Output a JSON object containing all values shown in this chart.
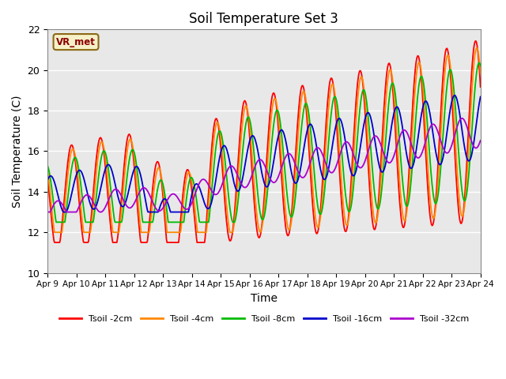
{
  "title": "Soil Temperature Set 3",
  "xlabel": "Time",
  "ylabel": "Soil Temperature (C)",
  "ylim": [
    10,
    22
  ],
  "xlim_days": [
    0,
    15
  ],
  "bg_color": "#e8e8e8",
  "label_box_text": "VR_met",
  "label_box_fg": "#8b0000",
  "label_box_bg": "#f5f0c8",
  "label_box_border": "#8b6914",
  "series": [
    {
      "name": "Tsoil -2cm",
      "color": "#ff0000",
      "lw": 1.3
    },
    {
      "name": "Tsoil -4cm",
      "color": "#ff8800",
      "lw": 1.3
    },
    {
      "name": "Tsoil -8cm",
      "color": "#00bb00",
      "lw": 1.3
    },
    {
      "name": "Tsoil -16cm",
      "color": "#0000cc",
      "lw": 1.3
    },
    {
      "name": "Tsoil -32cm",
      "color": "#aa00cc",
      "lw": 1.3
    }
  ],
  "date_labels": [
    "Apr 9",
    "Apr 10",
    "Apr 11",
    "Apr 12",
    "Apr 13",
    "Apr 14",
    "Apr 15",
    "Apr 16",
    "Apr 17",
    "Apr 18",
    "Apr 19",
    "Apr 20",
    "Apr 21",
    "Apr 22",
    "Apr 23",
    "Apr 24"
  ]
}
